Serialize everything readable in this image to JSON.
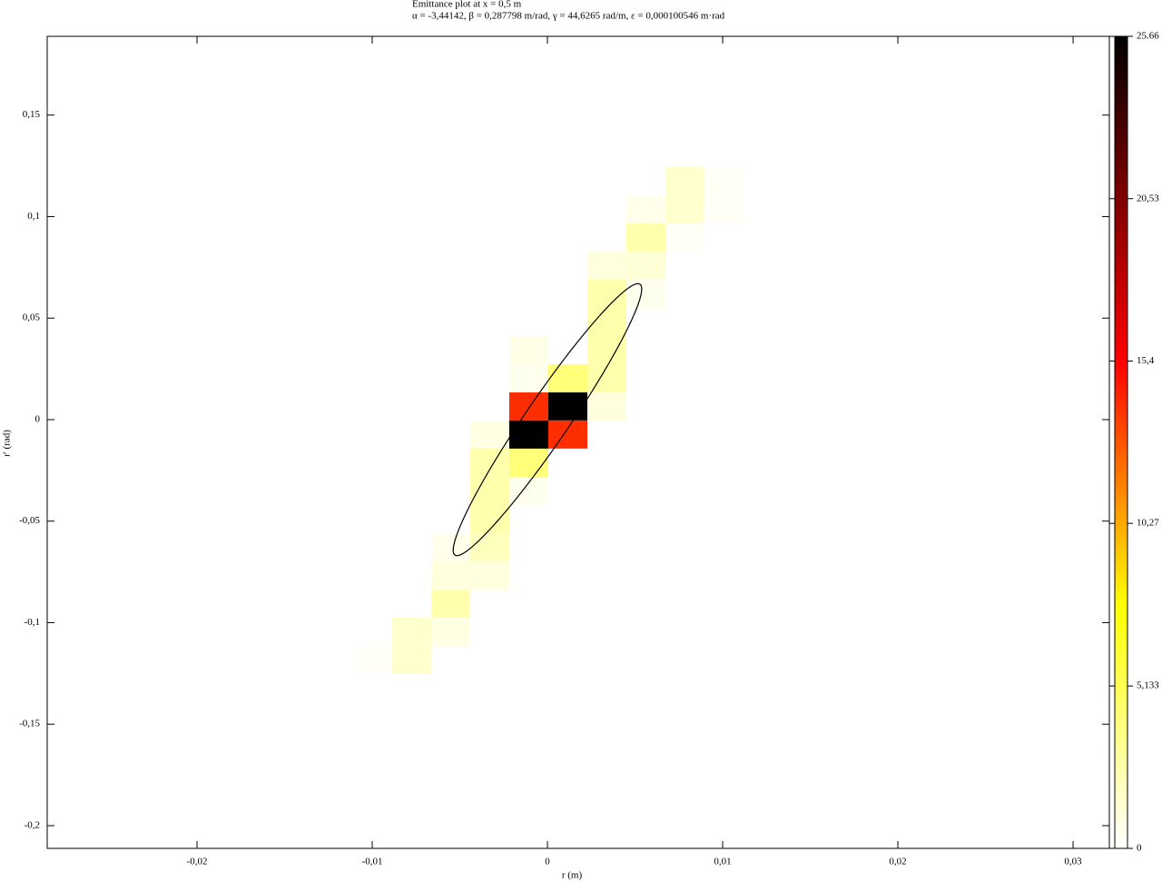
{
  "chart_data": {
    "type": "heatmap",
    "title": "Emittance plot at x = 0,5 m",
    "subtitle": "α = -3,44142, β = 0,287798 m/rad, γ = 44,6265 rad/m, ε = 0,000100546 m·rad",
    "x_label": "r (m)",
    "y_label": "r' (rad)",
    "xlim": [
      -0.02855,
      0.03207
    ],
    "ylim": [
      -0.2112,
      0.1888
    ],
    "xticks": [
      {
        "value": -0.02,
        "label": "-0,02"
      },
      {
        "value": -0.01,
        "label": "-0,01"
      },
      0,
      {
        "value": 0.01,
        "label": "0,01"
      },
      {
        "value": 0.02,
        "label": "0,02"
      },
      {
        "value": 0.03,
        "label": "0,03"
      }
    ],
    "yticks": [
      {
        "value": -0.2,
        "label": "-0,2"
      },
      {
        "value": -0.15,
        "label": "-0,15"
      },
      {
        "value": -0.1,
        "label": "-0,1"
      },
      {
        "value": -0.05,
        "label": "-0,05"
      },
      0,
      {
        "value": 0.05,
        "label": "0,05"
      },
      {
        "value": 0.1,
        "label": "0,1"
      },
      {
        "value": 0.15,
        "label": "0,15"
      }
    ],
    "x_edges": [
      -0.01109,
      -0.00886,
      -0.00663,
      -0.0044,
      -0.00218,
      5e-05,
      0.00228,
      0.00451,
      0.00674,
      0.00896,
      0.01119
    ],
    "y_edges": [
      0.1244,
      0.1105,
      0.0966,
      0.0828,
      0.0689,
      0.055,
      0.0412,
      0.0273,
      0.0134,
      -0.0004,
      -0.0143,
      -0.0282,
      -0.0421,
      -0.0559,
      -0.0698,
      -0.0837,
      -0.0975,
      -0.1114,
      -0.1253
    ],
    "z": [
      [
        0,
        0,
        0,
        0,
        0,
        0,
        0,
        0,
        1.5,
        0.3
      ],
      [
        0,
        0,
        0,
        0,
        0,
        0,
        0,
        0.6,
        1.5,
        0.2
      ],
      [
        0,
        0,
        0,
        0,
        0,
        0,
        0,
        2.5,
        0.3,
        0
      ],
      [
        0,
        0,
        0,
        0,
        0,
        0,
        1,
        1.2,
        0,
        0
      ],
      [
        0,
        0,
        0,
        0,
        0,
        0,
        2.5,
        0.5,
        0,
        0
      ],
      [
        0,
        0,
        0,
        0,
        0,
        0,
        2.5,
        0,
        0,
        0
      ],
      [
        0,
        0,
        0,
        0,
        0.7,
        0,
        2.5,
        0,
        0,
        0
      ],
      [
        0,
        0,
        0,
        0,
        0.5,
        4,
        2.5,
        0,
        0,
        0
      ],
      [
        0,
        0,
        0,
        0,
        14,
        25.66,
        1,
        0,
        0,
        0
      ],
      [
        0,
        0,
        0,
        0.8,
        25.66,
        14,
        0,
        0,
        0,
        0
      ],
      [
        0,
        0,
        0,
        2.5,
        4,
        0,
        0,
        0,
        0,
        0
      ],
      [
        0,
        0,
        0,
        2.5,
        0.5,
        0,
        0,
        0,
        0,
        0
      ],
      [
        0,
        0,
        0,
        2.5,
        0,
        0,
        0,
        0,
        0,
        0
      ],
      [
        0,
        0,
        0.6,
        2,
        0,
        0,
        0,
        0,
        0,
        0
      ],
      [
        0,
        0,
        1,
        1,
        0,
        0,
        0,
        0,
        0,
        0
      ],
      [
        0,
        0,
        2.5,
        0,
        0,
        0,
        0,
        0,
        0,
        0
      ],
      [
        0,
        1.5,
        0.8,
        0,
        0,
        0,
        0,
        0,
        0,
        0
      ],
      [
        0.2,
        1.5,
        0,
        0,
        0,
        0,
        0,
        0,
        0,
        0
      ]
    ],
    "colorscale": [
      [
        0,
        "#ffffff"
      ],
      [
        0.3,
        "#ffff00"
      ],
      [
        0.6,
        "#ff0000"
      ],
      [
        1,
        "#000000"
      ]
    ],
    "zlim": [
      0,
      25.66
    ],
    "zticks": [
      0,
      {
        "value": 5.133,
        "label": "5,133"
      },
      {
        "value": 10.27,
        "label": "10,27"
      },
      {
        "value": 15.4,
        "label": "15,4"
      },
      {
        "value": 20.53,
        "label": "20,53"
      },
      25.66
    ],
    "ellipse": {
      "alpha": -3.44142,
      "beta": 0.287798,
      "gamma": 44.6265,
      "epsilon": 0.000100546,
      "color": "#000000"
    }
  }
}
